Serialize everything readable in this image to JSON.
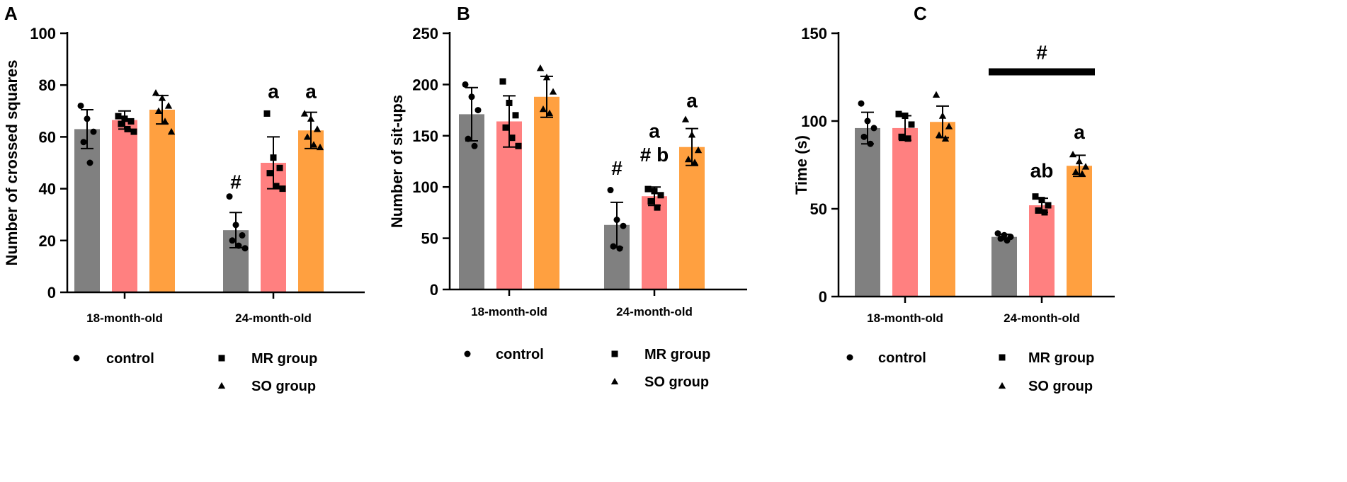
{
  "chart_data": [
    {
      "type": "bar",
      "panel": "A",
      "ylabel": "Number of crossed squares",
      "ylim": [
        0,
        100
      ],
      "yticks": [
        0,
        20,
        40,
        60,
        80,
        100
      ],
      "categories": [
        "18-month-old",
        "24-month-old"
      ],
      "series": [
        {
          "name": "control",
          "marker": "circle",
          "color": "#808080",
          "values": [
            63,
            24
          ],
          "errors": [
            7.5,
            6.8
          ],
          "points": [
            [
              72,
              67,
              62,
              58,
              50
            ],
            [
              37,
              26,
              22,
              20,
              18,
              17
            ]
          ]
        },
        {
          "name": "MR group",
          "marker": "square",
          "color": "#ff8080",
          "values": [
            66.5,
            50
          ],
          "errors": [
            3.5,
            10
          ],
          "points": [
            [
              68,
              67,
              66,
              65,
              63,
              62
            ],
            [
              69,
              52,
              48,
              46,
              41,
              40
            ]
          ]
        },
        {
          "name": "SO group",
          "marker": "triangle",
          "color": "#ffa040",
          "values": [
            70.5,
            62.5
          ],
          "errors": [
            5.5,
            7
          ],
          "points": [
            [
              77,
              75,
              72,
              70,
              66,
              62
            ],
            [
              69,
              67,
              63,
              60,
              57,
              56
            ]
          ]
        }
      ],
      "annotations": [
        {
          "text": "#",
          "category": 1,
          "series": 0,
          "value": 40
        },
        {
          "text": "a",
          "category": 1,
          "series": 1,
          "value": 75
        },
        {
          "text": "a",
          "category": 1,
          "series": 2,
          "value": 75
        }
      ],
      "bracket": null
    },
    {
      "type": "bar",
      "panel": "B",
      "ylabel": "Number of sit-ups",
      "ylim": [
        0,
        250
      ],
      "yticks": [
        0,
        50,
        100,
        150,
        200,
        250
      ],
      "categories": [
        "18-month-old",
        "24-month-old"
      ],
      "series": [
        {
          "name": "control",
          "marker": "circle",
          "color": "#808080",
          "values": [
            171,
            63
          ],
          "errors": [
            26,
            22
          ],
          "points": [
            [
              200,
              188,
              175,
              147,
              140
            ],
            [
              97,
              68,
              62,
              42,
              40
            ]
          ]
        },
        {
          "name": "MR group",
          "marker": "square",
          "color": "#ff8080",
          "values": [
            164,
            91
          ],
          "errors": [
            25,
            9
          ],
          "points": [
            [
              203,
              182,
              170,
              158,
              148,
              140
            ],
            [
              98,
              96,
              92,
              86,
              80
            ]
          ]
        },
        {
          "name": "SO group",
          "marker": "triangle",
          "color": "#ffa040",
          "values": [
            188,
            139
          ],
          "errors": [
            20,
            18
          ],
          "points": [
            [
              216,
              207,
              193,
              176,
              172
            ],
            [
              166,
              151,
              136,
              127,
              124
            ]
          ]
        }
      ],
      "annotations": [
        {
          "text": "#",
          "category": 1,
          "series": 0,
          "value": 112
        },
        {
          "text": "# b",
          "category": 1,
          "series": 1,
          "value": 125
        },
        {
          "text": "a",
          "category": 1,
          "series": 1,
          "value": 148
        },
        {
          "text": "a",
          "category": 1,
          "series": 2,
          "value": 178
        }
      ],
      "bracket": null
    },
    {
      "type": "bar",
      "panel": "C",
      "ylabel": "Time (s)",
      "ylim": [
        0,
        150
      ],
      "yticks": [
        0,
        50,
        100,
        150
      ],
      "categories": [
        "18-month-old",
        "24-month-old"
      ],
      "series": [
        {
          "name": "control",
          "marker": "circle",
          "color": "#808080",
          "values": [
            96,
            34
          ],
          "errors": [
            9,
            1.5
          ],
          "points": [
            [
              110,
              100,
              96,
              91,
              87
            ],
            [
              36,
              35,
              34,
              33,
              32
            ]
          ]
        },
        {
          "name": "MR group",
          "marker": "square",
          "color": "#ff8080",
          "values": [
            96,
            52
          ],
          "errors": [
            7,
            4
          ],
          "points": [
            [
              104,
              103,
              98,
              91,
              90
            ],
            [
              57,
              55,
              52,
              49,
              48
            ]
          ]
        },
        {
          "name": "SO group",
          "marker": "triangle",
          "color": "#ffa040",
          "values": [
            99.5,
            74.5
          ],
          "errors": [
            9,
            6
          ],
          "points": [
            [
              115,
              103,
              97,
              92,
              90
            ],
            [
              81,
              77,
              74,
              71,
              70
            ]
          ]
        }
      ],
      "annotations": [
        {
          "text": "ab",
          "category": 1,
          "series": 1,
          "value": 68
        },
        {
          "text": "a",
          "category": 1,
          "series": 2,
          "value": 90
        }
      ],
      "bracket": {
        "text": "#",
        "category": 1,
        "value": 128
      }
    }
  ]
}
